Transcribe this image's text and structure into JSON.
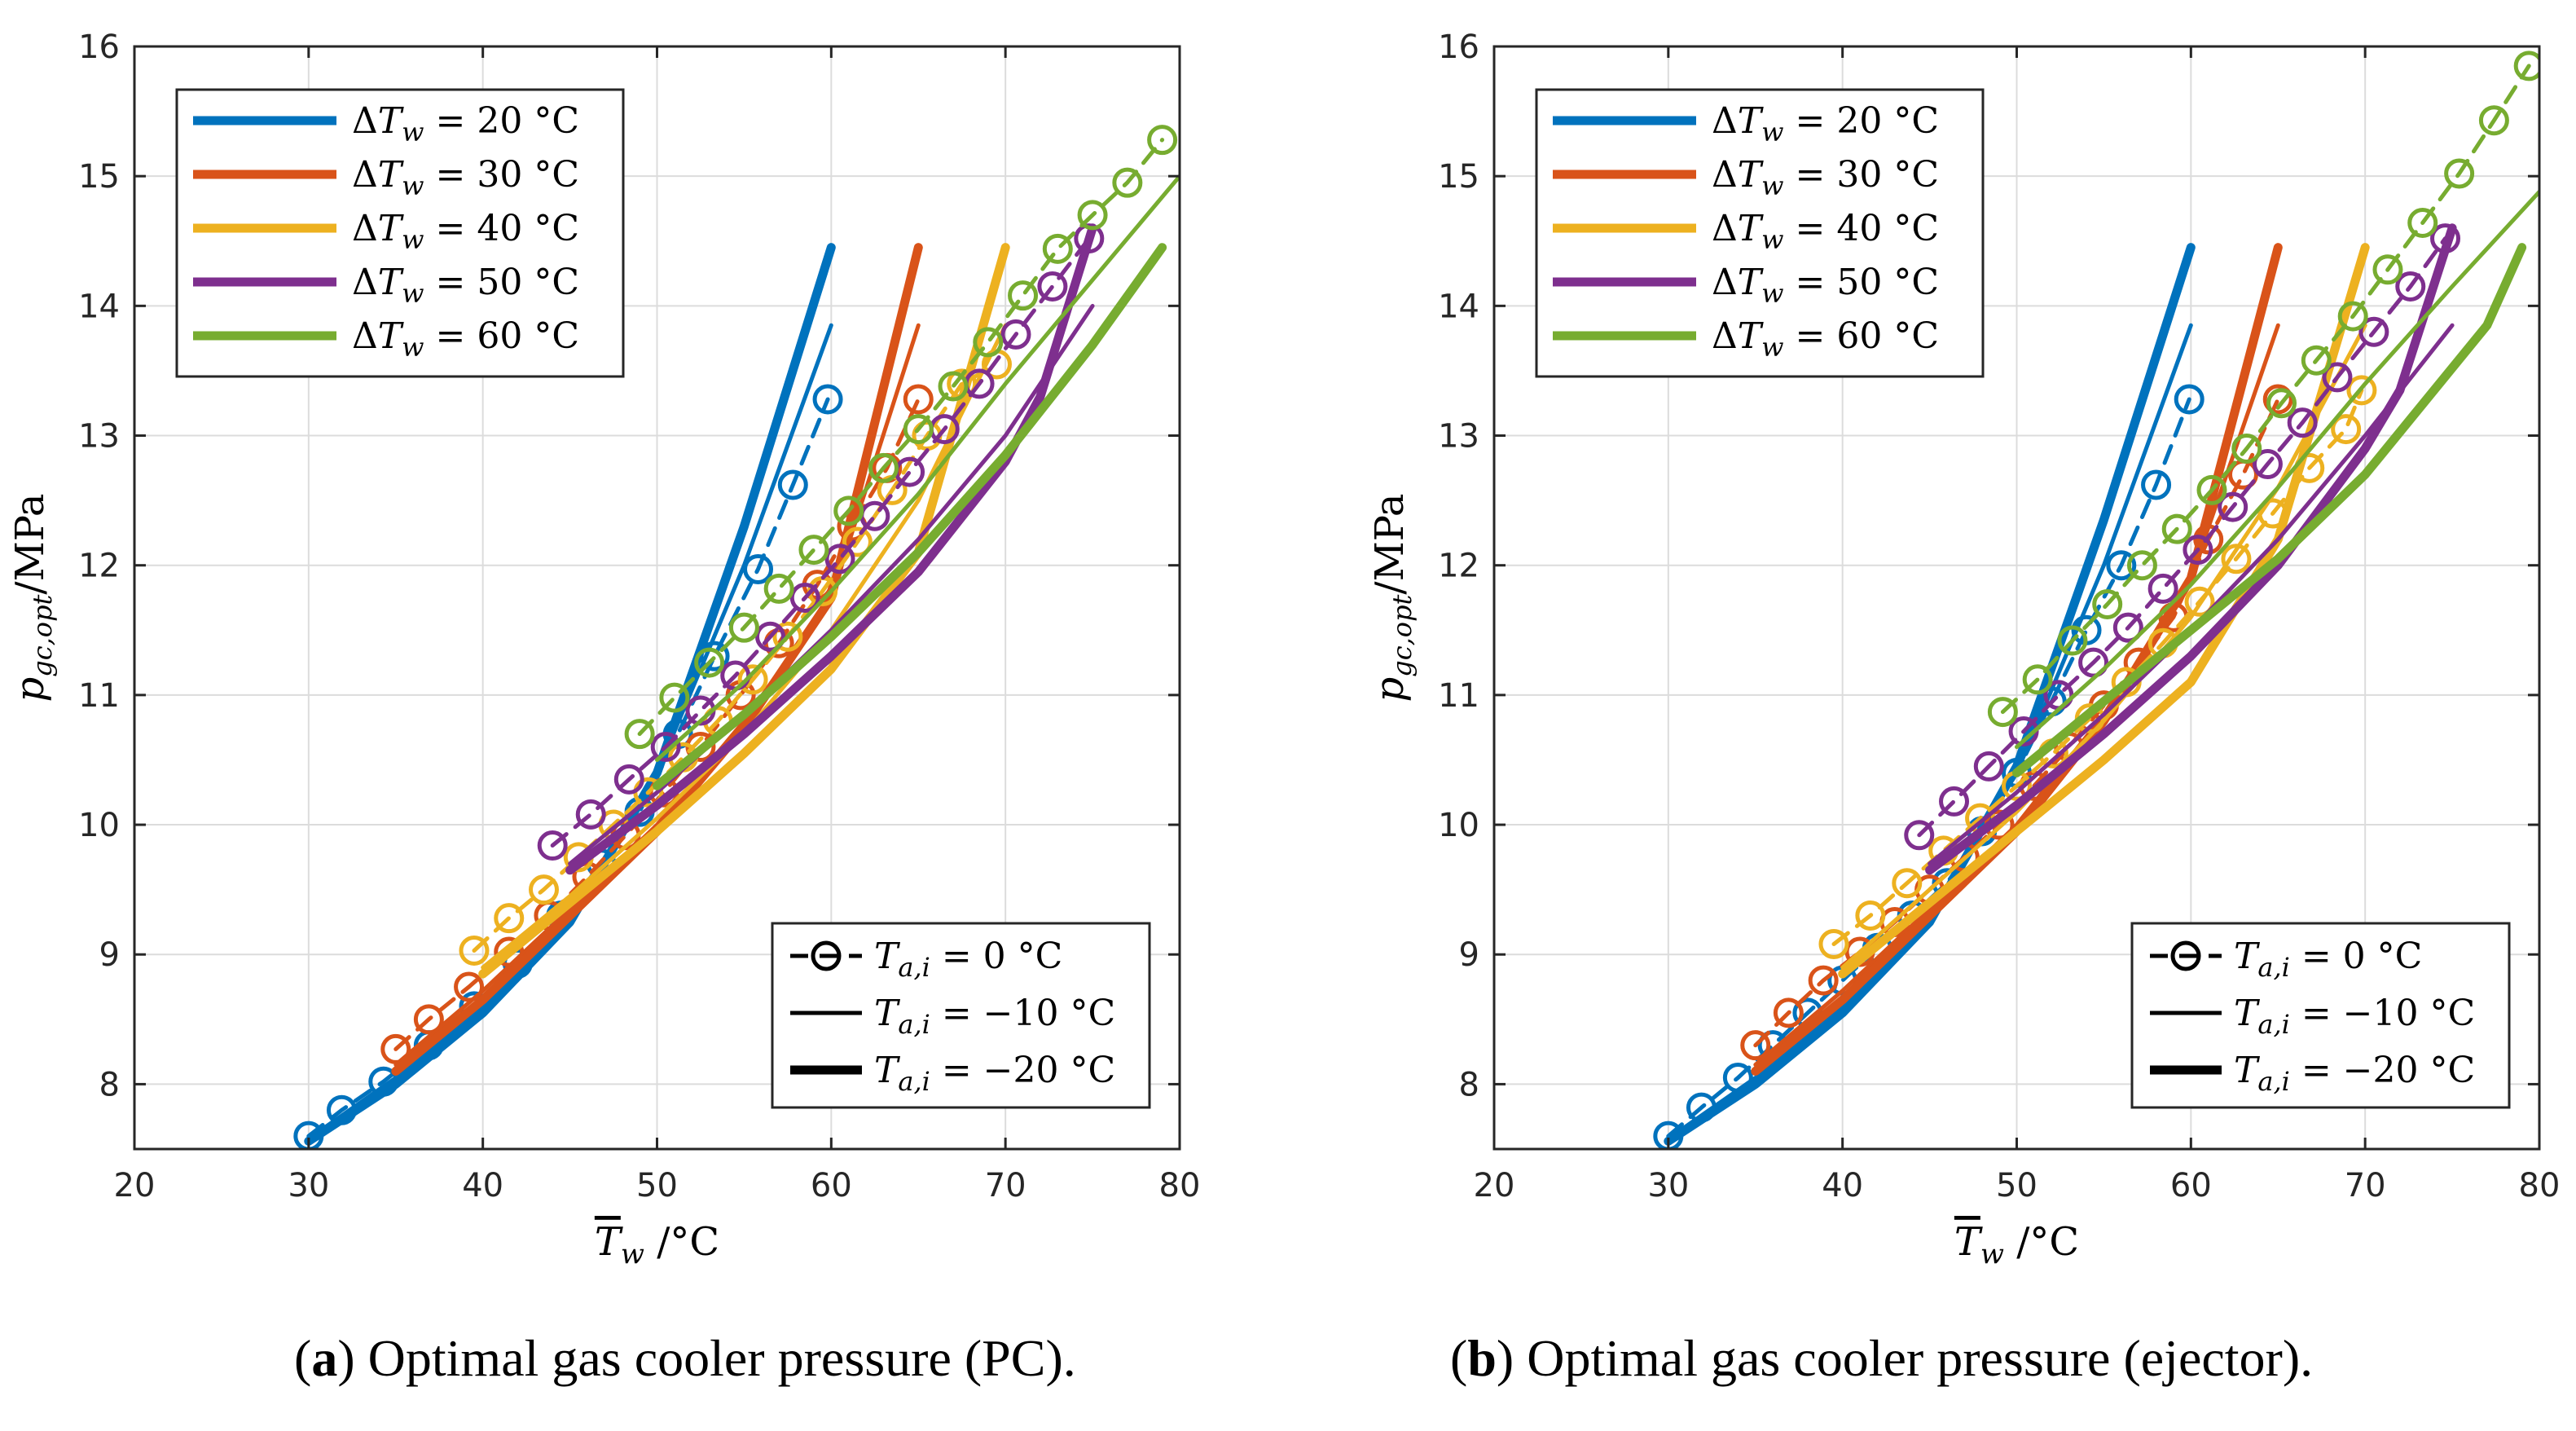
{
  "figure": {
    "captions": [
      {
        "letter": "a",
        "text": ") Optimal gas cooler pressure (PC).",
        "open": "("
      },
      {
        "letter": "b",
        "text": ") Optimal gas cooler pressure (ejector).",
        "open": "("
      }
    ]
  },
  "colors": {
    "dT20": "#0072BD",
    "dT30": "#D95319",
    "dT40": "#EDB120",
    "dT50": "#7E2F8E",
    "dT60": "#77AC30"
  },
  "chart_data": [
    {
      "type": "line",
      "title": "Optimal gas cooler pressure (PC)",
      "xlabel": "T̄_w /°C",
      "ylabel": "p_gc,opt /MPa",
      "xlim": [
        20,
        80
      ],
      "ylim": [
        7.5,
        16
      ],
      "xticks": [
        20,
        30,
        40,
        50,
        60,
        70,
        80
      ],
      "yticks": [
        8,
        9,
        10,
        11,
        12,
        13,
        14,
        15,
        16
      ],
      "grid": true,
      "legend_color": {
        "placement": "top-left",
        "entries": [
          "ΔT_w = 20 °C",
          "ΔT_w = 30 °C",
          "ΔT_w = 40 °C",
          "ΔT_w = 50 °C",
          "ΔT_w = 60 °C"
        ]
      },
      "legend_style": {
        "placement": "bottom-right",
        "entries": [
          "T_a,i = 0 °C",
          "T_a,i = −10 °C",
          "T_a,i = −20 °C"
        ]
      },
      "series": [
        {
          "dT": 20,
          "Tai": 0,
          "x": [
            30,
            31.9,
            34.3,
            36.9,
            39.5,
            42,
            44.5,
            46.8,
            49,
            51.2,
            53.3,
            55.8,
            57.8,
            59.8
          ],
          "y": [
            7.6,
            7.8,
            8.02,
            8.3,
            8.6,
            8.93,
            9.3,
            9.7,
            10.1,
            10.7,
            11.3,
            11.97,
            12.62,
            13.28
          ]
        },
        {
          "dT": 20,
          "Tai": -10,
          "x": [
            30,
            35,
            40,
            45,
            50,
            55,
            60
          ],
          "y": [
            7.58,
            8.05,
            8.6,
            9.3,
            10.4,
            12.0,
            13.85
          ]
        },
        {
          "dT": 20,
          "Tai": -20,
          "x": [
            30,
            35,
            40,
            45,
            50,
            55,
            60
          ],
          "y": [
            7.56,
            8.0,
            8.55,
            9.25,
            10.4,
            12.3,
            14.45
          ]
        },
        {
          "dT": 30,
          "Tai": 0,
          "x": [
            35,
            36.9,
            39.2,
            41.5,
            43.8,
            46,
            48.2,
            50.4,
            52.5,
            54.8,
            57,
            59.2,
            61.2,
            63.2,
            65
          ],
          "y": [
            8.27,
            8.5,
            8.75,
            9.02,
            9.3,
            9.6,
            9.92,
            10.25,
            10.6,
            11.0,
            11.4,
            11.85,
            12.3,
            12.75,
            13.28
          ]
        },
        {
          "dT": 30,
          "Tai": -10,
          "x": [
            35,
            40,
            45,
            50,
            55,
            60,
            65
          ],
          "y": [
            8.15,
            8.72,
            9.35,
            10.0,
            10.8,
            11.75,
            13.85
          ]
        },
        {
          "dT": 30,
          "Tai": -20,
          "x": [
            35,
            40,
            45,
            50,
            55,
            60,
            65
          ],
          "y": [
            8.1,
            8.65,
            9.3,
            9.95,
            10.75,
            11.75,
            14.45
          ]
        },
        {
          "dT": 40,
          "Tai": 0,
          "x": [
            39.5,
            41.5,
            43.5,
            45.5,
            47.5,
            49.5,
            51.5,
            53.5,
            55.5,
            57.5,
            59.5,
            61.5,
            63.5,
            65.5,
            67.5,
            69.5
          ],
          "y": [
            9.03,
            9.28,
            9.5,
            9.75,
            10.0,
            10.25,
            10.52,
            10.8,
            11.12,
            11.45,
            11.8,
            12.18,
            12.58,
            13.0,
            13.4,
            13.55
          ]
        },
        {
          "dT": 40,
          "Tai": -10,
          "x": [
            40,
            45,
            50,
            55,
            60,
            65,
            70
          ],
          "y": [
            8.9,
            9.45,
            10.05,
            10.7,
            11.5,
            12.5,
            13.85
          ]
        },
        {
          "dT": 40,
          "Tai": -20,
          "x": [
            40,
            45,
            50,
            55,
            60,
            65,
            70
          ],
          "y": [
            8.85,
            9.4,
            9.95,
            10.55,
            11.2,
            12.1,
            14.45
          ]
        },
        {
          "dT": 50,
          "Tai": 0,
          "x": [
            44,
            46.2,
            48.4,
            50.5,
            52.5,
            54.5,
            56.5,
            58.5,
            60.5,
            62.5,
            64.5,
            66.5,
            68.5,
            70.6,
            72.7,
            74.8
          ],
          "y": [
            9.84,
            10.08,
            10.35,
            10.6,
            10.88,
            11.15,
            11.45,
            11.75,
            12.05,
            12.38,
            12.72,
            13.05,
            13.4,
            13.78,
            14.15,
            14.52
          ]
        },
        {
          "dT": 50,
          "Tai": -10,
          "x": [
            45,
            50,
            55,
            60,
            65,
            70,
            75
          ],
          "y": [
            9.7,
            10.25,
            10.85,
            11.5,
            12.2,
            13.0,
            14.0
          ]
        },
        {
          "dT": 50,
          "Tai": -20,
          "x": [
            45,
            50,
            55,
            60,
            65,
            70,
            72,
            75
          ],
          "y": [
            9.65,
            10.15,
            10.7,
            11.3,
            11.95,
            12.8,
            13.3,
            14.6
          ]
        },
        {
          "dT": 60,
          "Tai": 0,
          "x": [
            49,
            51,
            53,
            55,
            57,
            59,
            61,
            63,
            65,
            67,
            69,
            71,
            73,
            75,
            77,
            79
          ],
          "y": [
            10.7,
            10.98,
            11.25,
            11.52,
            11.82,
            12.12,
            12.42,
            12.75,
            13.05,
            13.38,
            13.72,
            14.08,
            14.44,
            14.7,
            14.95,
            15.28
          ]
        },
        {
          "dT": 60,
          "Tai": -10,
          "x": [
            50,
            55,
            60,
            65,
            70,
            75,
            80
          ],
          "y": [
            10.5,
            11.1,
            11.8,
            12.55,
            13.4,
            14.2,
            15.0
          ]
        },
        {
          "dT": 60,
          "Tai": -20,
          "x": [
            50,
            55,
            60,
            65,
            70,
            75,
            79
          ],
          "y": [
            10.3,
            10.85,
            11.45,
            12.1,
            12.85,
            13.7,
            14.45
          ]
        }
      ]
    },
    {
      "type": "line",
      "title": "Optimal gas cooler pressure (ejector)",
      "xlabel": "T̄_w /°C",
      "ylabel": "p_gc,opt /MPa",
      "xlim": [
        20,
        80
      ],
      "ylim": [
        7.5,
        16
      ],
      "xticks": [
        20,
        30,
        40,
        50,
        60,
        70,
        80
      ],
      "yticks": [
        8,
        9,
        10,
        11,
        12,
        13,
        14,
        15,
        16
      ],
      "grid": true,
      "legend_color": {
        "placement": "top-left",
        "entries": [
          "ΔT_w = 20 °C",
          "ΔT_w = 30 °C",
          "ΔT_w = 40 °C",
          "ΔT_w = 50 °C",
          "ΔT_w = 60 °C"
        ]
      },
      "legend_style": {
        "placement": "bottom-right",
        "entries": [
          "T_a,i = 0 °C",
          "T_a,i = −10 °C",
          "T_a,i = −20 °C"
        ]
      },
      "series": [
        {
          "dT": 20,
          "Tai": 0,
          "x": [
            30,
            31.9,
            34,
            36,
            38,
            40,
            42,
            44,
            46,
            48,
            50,
            52,
            54,
            56,
            58,
            59.9
          ],
          "y": [
            7.6,
            7.82,
            8.05,
            8.3,
            8.55,
            8.8,
            9.05,
            9.3,
            9.55,
            9.95,
            10.4,
            10.95,
            11.5,
            12.0,
            12.62,
            13.28
          ]
        },
        {
          "dT": 20,
          "Tai": -10,
          "x": [
            30,
            35,
            40,
            45,
            50,
            55,
            60
          ],
          "y": [
            7.58,
            8.05,
            8.6,
            9.3,
            10.4,
            12.0,
            13.85
          ]
        },
        {
          "dT": 20,
          "Tai": -20,
          "x": [
            30,
            35,
            40,
            45,
            50,
            55,
            60
          ],
          "y": [
            7.56,
            8.0,
            8.55,
            9.25,
            10.45,
            12.35,
            14.45
          ]
        },
        {
          "dT": 30,
          "Tai": 0,
          "x": [
            35,
            36.9,
            38.9,
            41,
            43,
            45,
            47,
            49,
            51,
            53,
            55,
            57,
            59,
            61,
            63,
            65
          ],
          "y": [
            8.3,
            8.55,
            8.8,
            9.02,
            9.25,
            9.5,
            9.75,
            10.0,
            10.3,
            10.6,
            10.92,
            11.25,
            11.6,
            12.2,
            12.7,
            13.28
          ]
        },
        {
          "dT": 30,
          "Tai": -10,
          "x": [
            35,
            40,
            45,
            50,
            55,
            60,
            65
          ],
          "y": [
            8.15,
            8.72,
            9.35,
            10.0,
            10.85,
            11.9,
            13.85
          ]
        },
        {
          "dT": 30,
          "Tai": -20,
          "x": [
            35,
            40,
            45,
            50,
            55,
            60,
            65
          ],
          "y": [
            8.1,
            8.65,
            9.3,
            9.95,
            10.8,
            11.9,
            14.45
          ]
        },
        {
          "dT": 40,
          "Tai": 0,
          "x": [
            39.5,
            41.6,
            43.7,
            45.8,
            47.9,
            50,
            52.1,
            54.2,
            56.3,
            58.4,
            60.5,
            62.6,
            64.7,
            66.8,
            68.9,
            69.8
          ],
          "y": [
            9.08,
            9.3,
            9.55,
            9.8,
            10.05,
            10.3,
            10.55,
            10.82,
            11.1,
            11.4,
            11.72,
            12.05,
            12.4,
            12.75,
            13.05,
            13.35
          ]
        },
        {
          "dT": 40,
          "Tai": -10,
          "x": [
            40,
            45,
            50,
            55,
            60,
            65,
            70
          ],
          "y": [
            8.9,
            9.5,
            10.1,
            10.8,
            11.6,
            12.6,
            13.85
          ]
        },
        {
          "dT": 40,
          "Tai": -20,
          "x": [
            40,
            45,
            50,
            55,
            60,
            65,
            70
          ],
          "y": [
            8.85,
            9.4,
            9.95,
            10.5,
            11.1,
            12.2,
            14.45
          ]
        },
        {
          "dT": 50,
          "Tai": 0,
          "x": [
            44.4,
            46.4,
            48.4,
            50.4,
            52.4,
            54.4,
            56.4,
            58.4,
            60.4,
            62.4,
            64.4,
            66.4,
            68.4,
            70.5,
            72.6,
            74.6
          ],
          "y": [
            9.92,
            10.18,
            10.45,
            10.72,
            11.0,
            11.25,
            11.52,
            11.82,
            12.12,
            12.45,
            12.78,
            13.1,
            13.45,
            13.8,
            14.15,
            14.52
          ]
        },
        {
          "dT": 50,
          "Tai": -10,
          "x": [
            45,
            50,
            55,
            60,
            65,
            70,
            75
          ],
          "y": [
            9.7,
            10.25,
            10.85,
            11.5,
            12.2,
            13.0,
            13.85
          ]
        },
        {
          "dT": 50,
          "Tai": -20,
          "x": [
            45,
            50,
            55,
            60,
            65,
            70,
            72,
            75
          ],
          "y": [
            9.65,
            10.15,
            10.7,
            11.3,
            12.0,
            12.9,
            13.35,
            14.6
          ]
        },
        {
          "dT": 60,
          "Tai": 0,
          "x": [
            49.2,
            51.2,
            53.2,
            55.2,
            57.2,
            59.2,
            61.2,
            63.2,
            65.2,
            67.2,
            69.3,
            71.3,
            73.3,
            75.4,
            77.4,
            79.4
          ],
          "y": [
            10.87,
            11.12,
            11.42,
            11.7,
            12.0,
            12.28,
            12.58,
            12.9,
            13.25,
            13.58,
            13.92,
            14.28,
            14.64,
            15.02,
            15.43,
            15.85
          ]
        },
        {
          "dT": 60,
          "Tai": -10,
          "x": [
            50,
            55,
            60,
            65,
            70,
            75,
            80
          ],
          "y": [
            10.6,
            11.2,
            11.85,
            12.6,
            13.4,
            14.15,
            14.88
          ]
        },
        {
          "dT": 60,
          "Tai": -20,
          "x": [
            50,
            55,
            60,
            65,
            70,
            77,
            79
          ],
          "y": [
            10.4,
            10.95,
            11.5,
            12.05,
            12.7,
            13.85,
            14.45
          ]
        }
      ]
    }
  ]
}
